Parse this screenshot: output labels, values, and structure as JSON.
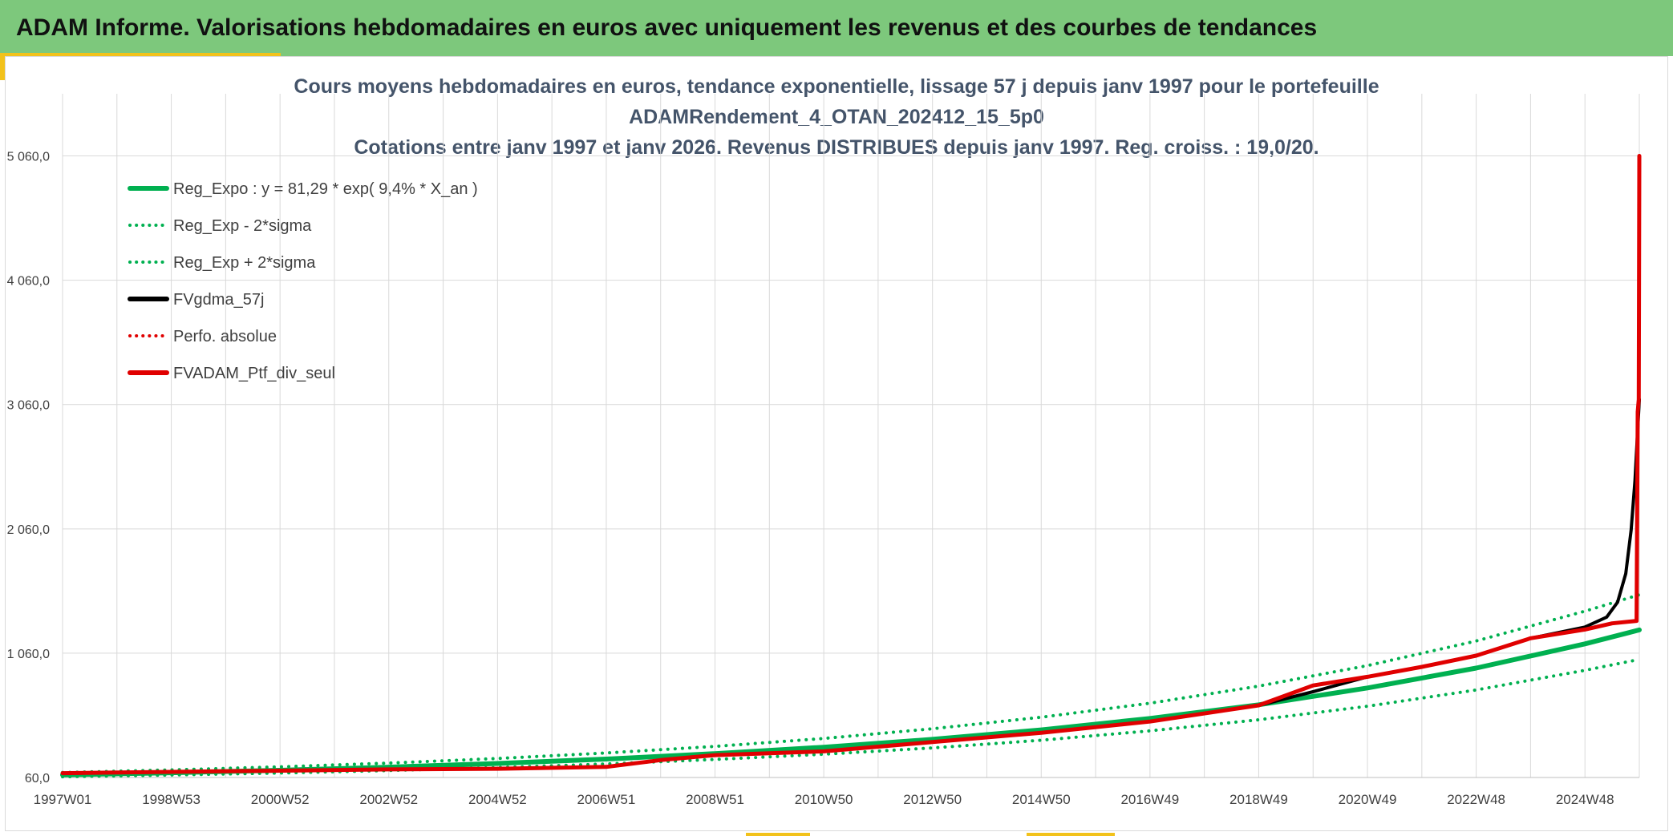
{
  "header": {
    "title": "ADAM Informe. Valorisations hebdomadaires en euros avec uniquement les revenus et des courbes de tendances"
  },
  "colors": {
    "banner": "#7dc87c",
    "accent": "#f2c21b",
    "green": "#00b050",
    "black": "#000000",
    "red": "#e00000",
    "grid": "#d9d9d9"
  },
  "chart_data": {
    "type": "line",
    "title_lines": [
      "Cours moyens hebdomadaires en euros, tendance exponentielle, lissage 57 j depuis janv 1997 pour le portefeuille",
      "ADAMRendement_4_OTAN_202412_15_5p0",
      "Cotations entre janv 1997 et janv 2026. Revenus DISTRIBUES depuis janv 1997. Reg. croiss. : 19,0/20."
    ],
    "y_range": [
      60,
      5560
    ],
    "y_ticks": [
      60,
      1060,
      2060,
      3060,
      4060,
      5060
    ],
    "y_tick_labels": [
      "60,0",
      "1 060,0",
      "2 060,0",
      "3 060,0",
      "4 060,0",
      "5 060,0"
    ],
    "x_range": [
      1997.0,
      2026.0
    ],
    "x_tick_values": [
      1997.0,
      1999.0,
      2001.0,
      2003.0,
      2005.0,
      2007.0,
      2009.0,
      2011.0,
      2013.0,
      2015.0,
      2017.0,
      2019.0,
      2021.0,
      2023.0,
      2025.0
    ],
    "x_tick_labels": [
      "1997W01",
      "1998W53",
      "2000W52",
      "2002W52",
      "2004W52",
      "2006W51",
      "2008W51",
      "2010W50",
      "2012W50",
      "2014W50",
      "2016W49",
      "2018W49",
      "2020W49",
      "2022W48",
      "2024W48"
    ],
    "grid": true,
    "legend_position": "top-left",
    "series": [
      {
        "name": "Reg_Expo : y = 81,29 * exp( 9,4% *  X_an )",
        "color": "#00b050",
        "style": "solid",
        "x": [
          1997.0,
          1999.0,
          2001.0,
          2003.0,
          2005.0,
          2007.0,
          2009.0,
          2011.0,
          2013.0,
          2015.0,
          2017.0,
          2019.0,
          2021.0,
          2023.0,
          2025.0,
          2026.0
        ],
        "y": [
          81,
          98,
          118,
          143,
          173,
          208,
          252,
          304,
          367,
          443,
          535,
          645,
          780,
          940,
          1135,
          1247
        ]
      },
      {
        "name": "Reg_Exp - 2*sigma",
        "color": "#00b050",
        "style": "dotted",
        "x": [
          1997.0,
          1999.0,
          2001.0,
          2003.0,
          2005.0,
          2007.0,
          2009.0,
          2011.0,
          2013.0,
          2015.0,
          2017.0,
          2019.0,
          2021.0,
          2023.0,
          2025.0,
          2026.0
        ],
        "y": [
          66,
          80,
          96,
          116,
          140,
          169,
          205,
          247,
          298,
          360,
          435,
          524,
          633,
          764,
          922,
          1010
        ]
      },
      {
        "name": "Reg_Exp + 2*sigma",
        "color": "#00b050",
        "style": "dotted",
        "x": [
          1997.0,
          1999.0,
          2001.0,
          2003.0,
          2005.0,
          2007.0,
          2009.0,
          2011.0,
          2013.0,
          2015.0,
          2017.0,
          2019.0,
          2021.0,
          2023.0,
          2025.0,
          2026.0
        ],
        "y": [
          100,
          121,
          146,
          176,
          213,
          257,
          310,
          374,
          452,
          545,
          658,
          795,
          960,
          1158,
          1398,
          1530
        ]
      },
      {
        "name": "FVgdma_57j",
        "color": "#000000",
        "style": "solid",
        "x": [
          1997.0,
          1999.0,
          2001.0,
          2003.0,
          2005.0,
          2007.0,
          2008.0,
          2009.0,
          2011.0,
          2013.0,
          2015.0,
          2017.0,
          2019.0,
          2020.0,
          2021.0,
          2022.0,
          2023.0,
          2024.0,
          2025.0,
          2025.4,
          2025.6,
          2025.75,
          2025.85,
          2025.92,
          2026.0
        ],
        "y": [
          95,
          105,
          115,
          125,
          130,
          145,
          200,
          240,
          270,
          345,
          420,
          510,
          640,
          750,
          870,
          950,
          1040,
          1180,
          1270,
          1350,
          1470,
          1700,
          2050,
          2450,
          3100
        ]
      },
      {
        "name": "Perfo. absolue",
        "color": "#e00000",
        "style": "dotted",
        "x": [],
        "y": []
      },
      {
        "name": "FVADAM_Ptf_div_seul",
        "color": "#e00000",
        "style": "solid",
        "x": [
          1997.0,
          1999.0,
          2001.0,
          2003.0,
          2005.0,
          2007.0,
          2008.0,
          2009.0,
          2011.0,
          2013.0,
          2015.0,
          2017.0,
          2019.0,
          2020.0,
          2021.0,
          2022.0,
          2023.0,
          2024.0,
          2025.0,
          2025.5,
          2025.95,
          2025.97,
          2025.99,
          2026.0
        ],
        "y": [
          95,
          105,
          115,
          125,
          130,
          145,
          200,
          240,
          270,
          345,
          420,
          510,
          640,
          800,
          870,
          950,
          1040,
          1180,
          1250,
          1300,
          1320,
          3000,
          3100,
          5060
        ]
      }
    ]
  }
}
